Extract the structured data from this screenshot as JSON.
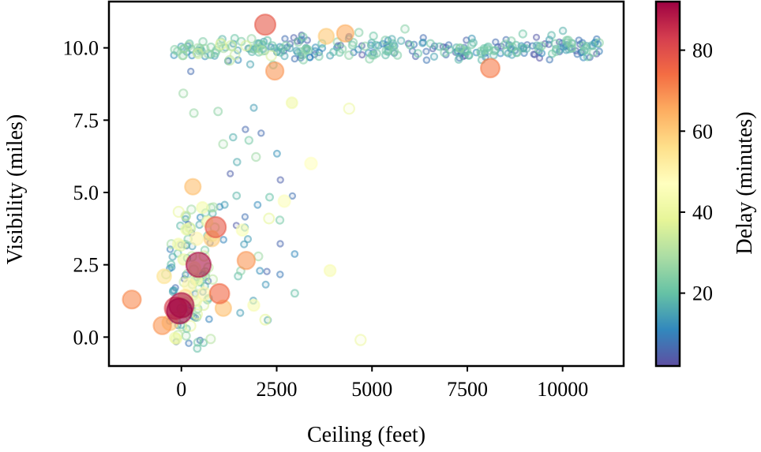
{
  "chart_data": {
    "type": "scatter",
    "title": "",
    "xlabel": "Ceiling (feet)",
    "ylabel": "Visibility (miles)",
    "colorbar_label": "Delay (minutes)",
    "xlim": [
      -1900,
      11600
    ],
    "ylim": [
      -1.0,
      11.6
    ],
    "x_ticks": [
      0,
      2500,
      5000,
      7500,
      10000
    ],
    "x_tick_labels": [
      "0",
      "2500",
      "5000",
      "7500",
      "10000"
    ],
    "y_ticks": [
      0.0,
      2.5,
      5.0,
      7.5,
      10.0
    ],
    "y_tick_labels": [
      "0.0",
      "2.5",
      "5.0",
      "7.5",
      "10.0"
    ],
    "color_range": [
      2,
      92
    ],
    "colorbar_ticks": [
      20,
      40,
      60,
      80
    ],
    "colorbar_tick_labels": [
      "20",
      "40",
      "60",
      "80"
    ],
    "colormap": [
      "#5e4fa2",
      "#3288bd",
      "#66c2a5",
      "#abdda4",
      "#e6f598",
      "#ffffbf",
      "#fee08b",
      "#fdae61",
      "#f46d43",
      "#d53e4f",
      "#9e0142"
    ],
    "grid": false,
    "size_encodes": "Delay (minutes)",
    "highlighted_points": [
      {
        "x": -1300,
        "y": 1.3,
        "delay": 70
      },
      {
        "x": -500,
        "y": 0.4,
        "delay": 68
      },
      {
        "x": -450,
        "y": 2.1,
        "delay": 55
      },
      {
        "x": -300,
        "y": 0.5,
        "delay": 60
      },
      {
        "x": -150,
        "y": 1.0,
        "delay": 82
      },
      {
        "x": -50,
        "y": 0.9,
        "delay": 92
      },
      {
        "x": 0,
        "y": 1.1,
        "delay": 90
      },
      {
        "x": 100,
        "y": 1.4,
        "delay": 55
      },
      {
        "x": 200,
        "y": 1.8,
        "delay": 50
      },
      {
        "x": 300,
        "y": 5.2,
        "delay": 62
      },
      {
        "x": 350,
        "y": 2.4,
        "delay": 45
      },
      {
        "x": 400,
        "y": 3.4,
        "delay": 50
      },
      {
        "x": 450,
        "y": 2.5,
        "delay": 90
      },
      {
        "x": 600,
        "y": 1.5,
        "delay": 50
      },
      {
        "x": 800,
        "y": 3.4,
        "delay": 60
      },
      {
        "x": 900,
        "y": 3.8,
        "delay": 78
      },
      {
        "x": 1000,
        "y": 1.5,
        "delay": 75
      },
      {
        "x": 1100,
        "y": 1.0,
        "delay": 62
      },
      {
        "x": 1600,
        "y": 3.7,
        "delay": 45
      },
      {
        "x": 1700,
        "y": 2.65,
        "delay": 68
      },
      {
        "x": 1900,
        "y": 1.1,
        "delay": 44
      },
      {
        "x": 2200,
        "y": 0.6,
        "delay": 38
      },
      {
        "x": 2200,
        "y": 10.8,
        "delay": 78
      },
      {
        "x": 2300,
        "y": 4.1,
        "delay": 38
      },
      {
        "x": 2450,
        "y": 9.2,
        "delay": 68
      },
      {
        "x": 2700,
        "y": 4.7,
        "delay": 46
      },
      {
        "x": 2900,
        "y": 8.1,
        "delay": 42
      },
      {
        "x": 3400,
        "y": 6.0,
        "delay": 47
      },
      {
        "x": 3800,
        "y": 10.4,
        "delay": 60
      },
      {
        "x": 3900,
        "y": 2.3,
        "delay": 44
      },
      {
        "x": 4300,
        "y": 10.5,
        "delay": 65
      },
      {
        "x": 4400,
        "y": 7.9,
        "delay": 40
      },
      {
        "x": 4700,
        "y": -0.1,
        "delay": 40
      },
      {
        "x": 8100,
        "y": 9.3,
        "delay": 72
      }
    ],
    "seed": 7,
    "n_background_points": 460
  }
}
